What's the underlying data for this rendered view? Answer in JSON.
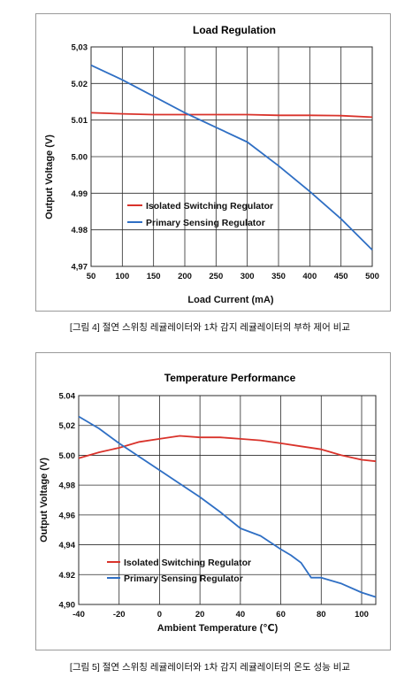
{
  "captions": {
    "chart1": "[그림 4] 절연 스위칭 레귤레이터와 1차 감지 레귤레이터의 부하 제어 비교",
    "chart2": "[그림 5] 절연 스위칭 레귤레이터와 1차 감지 레귤레이터의 온도 성능 비교"
  },
  "colors": {
    "isolated": "#d9332b",
    "primary": "#2f6fc4",
    "grid": "#2b2b2b"
  },
  "chart_data": [
    {
      "type": "line",
      "title": "Load Regulation",
      "xlabel": "Load Current (mA)",
      "ylabel": "Output Voltage (V)",
      "xlim": [
        50,
        500
      ],
      "ylim": [
        4.97,
        5.03
      ],
      "xticks": [
        50,
        100,
        150,
        200,
        250,
        300,
        350,
        400,
        450,
        500
      ],
      "yticks": [
        4.97,
        4.98,
        4.99,
        5.0,
        5.01,
        5.02,
        5.03
      ],
      "ytick_labels": [
        "4,97",
        "4.98",
        "4.99",
        "5.00",
        "5.01",
        "5.02",
        "5,03"
      ],
      "grid": true,
      "legend_position": "bottom-left",
      "series": [
        {
          "name": "Isolated Switching Regulator",
          "x": [
            50,
            100,
            150,
            200,
            250,
            300,
            350,
            400,
            450,
            500
          ],
          "y": [
            5.012,
            5.0117,
            5.0115,
            5.0115,
            5.0115,
            5.0115,
            5.0113,
            5.0113,
            5.0112,
            5.0108
          ]
        },
        {
          "name": "Primary Sensing Regulator",
          "x": [
            50,
            100,
            150,
            200,
            250,
            300,
            350,
            400,
            450,
            500
          ],
          "y": [
            5.025,
            5.021,
            5.0165,
            5.012,
            5.008,
            5.004,
            4.9975,
            4.9905,
            4.983,
            4.9745
          ]
        }
      ]
    },
    {
      "type": "line",
      "title": "Temperature Performance",
      "xlabel": "Ambient Temperature (℃)",
      "ylabel": "Output Voltage (V)",
      "xlim": [
        -40,
        107
      ],
      "ylim": [
        4.9,
        5.04
      ],
      "xticks": [
        -40,
        -20,
        0,
        20,
        40,
        60,
        80,
        100
      ],
      "yticks": [
        4.9,
        4.92,
        4.94,
        4.96,
        4.98,
        5.0,
        5.02,
        5.04
      ],
      "ytick_labels": [
        "4,90",
        "4.92",
        "4,94",
        "4,96",
        "4,98",
        "5.00",
        "5,02",
        "5.04"
      ],
      "grid": true,
      "legend_position": "bottom-left",
      "series": [
        {
          "name": "Isolated Switching Regulator",
          "x": [
            -40,
            -30,
            -20,
            -10,
            0,
            10,
            20,
            30,
            40,
            50,
            60,
            70,
            80,
            90,
            100,
            107
          ],
          "y": [
            4.998,
            5.002,
            5.005,
            5.009,
            5.011,
            5.013,
            5.012,
            5.012,
            5.011,
            5.01,
            5.008,
            5.006,
            5.004,
            5.0,
            4.997,
            4.996
          ]
        },
        {
          "name": "Primary Sensing Regulator",
          "x": [
            -40,
            -30,
            -20,
            -10,
            0,
            10,
            20,
            30,
            40,
            50,
            60,
            65,
            70,
            75,
            80,
            90,
            100,
            107
          ],
          "y": [
            5.026,
            5.018,
            5.008,
            4.999,
            4.99,
            4.981,
            4.972,
            4.962,
            4.951,
            4.946,
            4.937,
            4.933,
            4.928,
            4.918,
            4.918,
            4.914,
            4.908,
            4.905
          ]
        }
      ]
    }
  ]
}
